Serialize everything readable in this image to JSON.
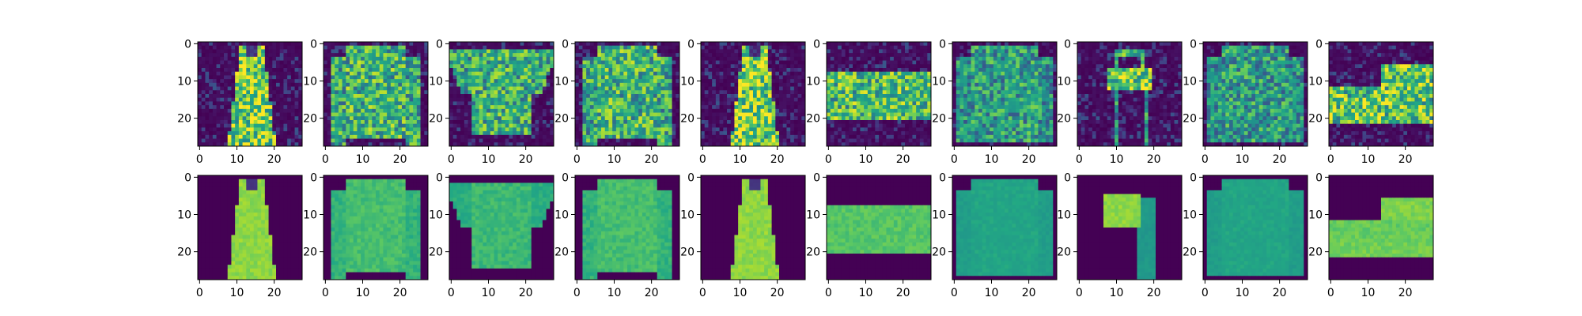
{
  "figure": {
    "grid_rows": 2,
    "grid_cols": 10,
    "image_resolution": 28,
    "colormap": "viridis",
    "x_ticks": [
      "0",
      "10",
      "20"
    ],
    "y_ticks": [
      "0",
      "10",
      "20"
    ],
    "row_descriptions": [
      "noisy fashion item images",
      "denoised reconstructions"
    ],
    "items": [
      "dress",
      "pullover",
      "t-shirt",
      "pullover",
      "dress",
      "bag",
      "coat",
      "bag",
      "coat",
      "sneaker"
    ]
  }
}
